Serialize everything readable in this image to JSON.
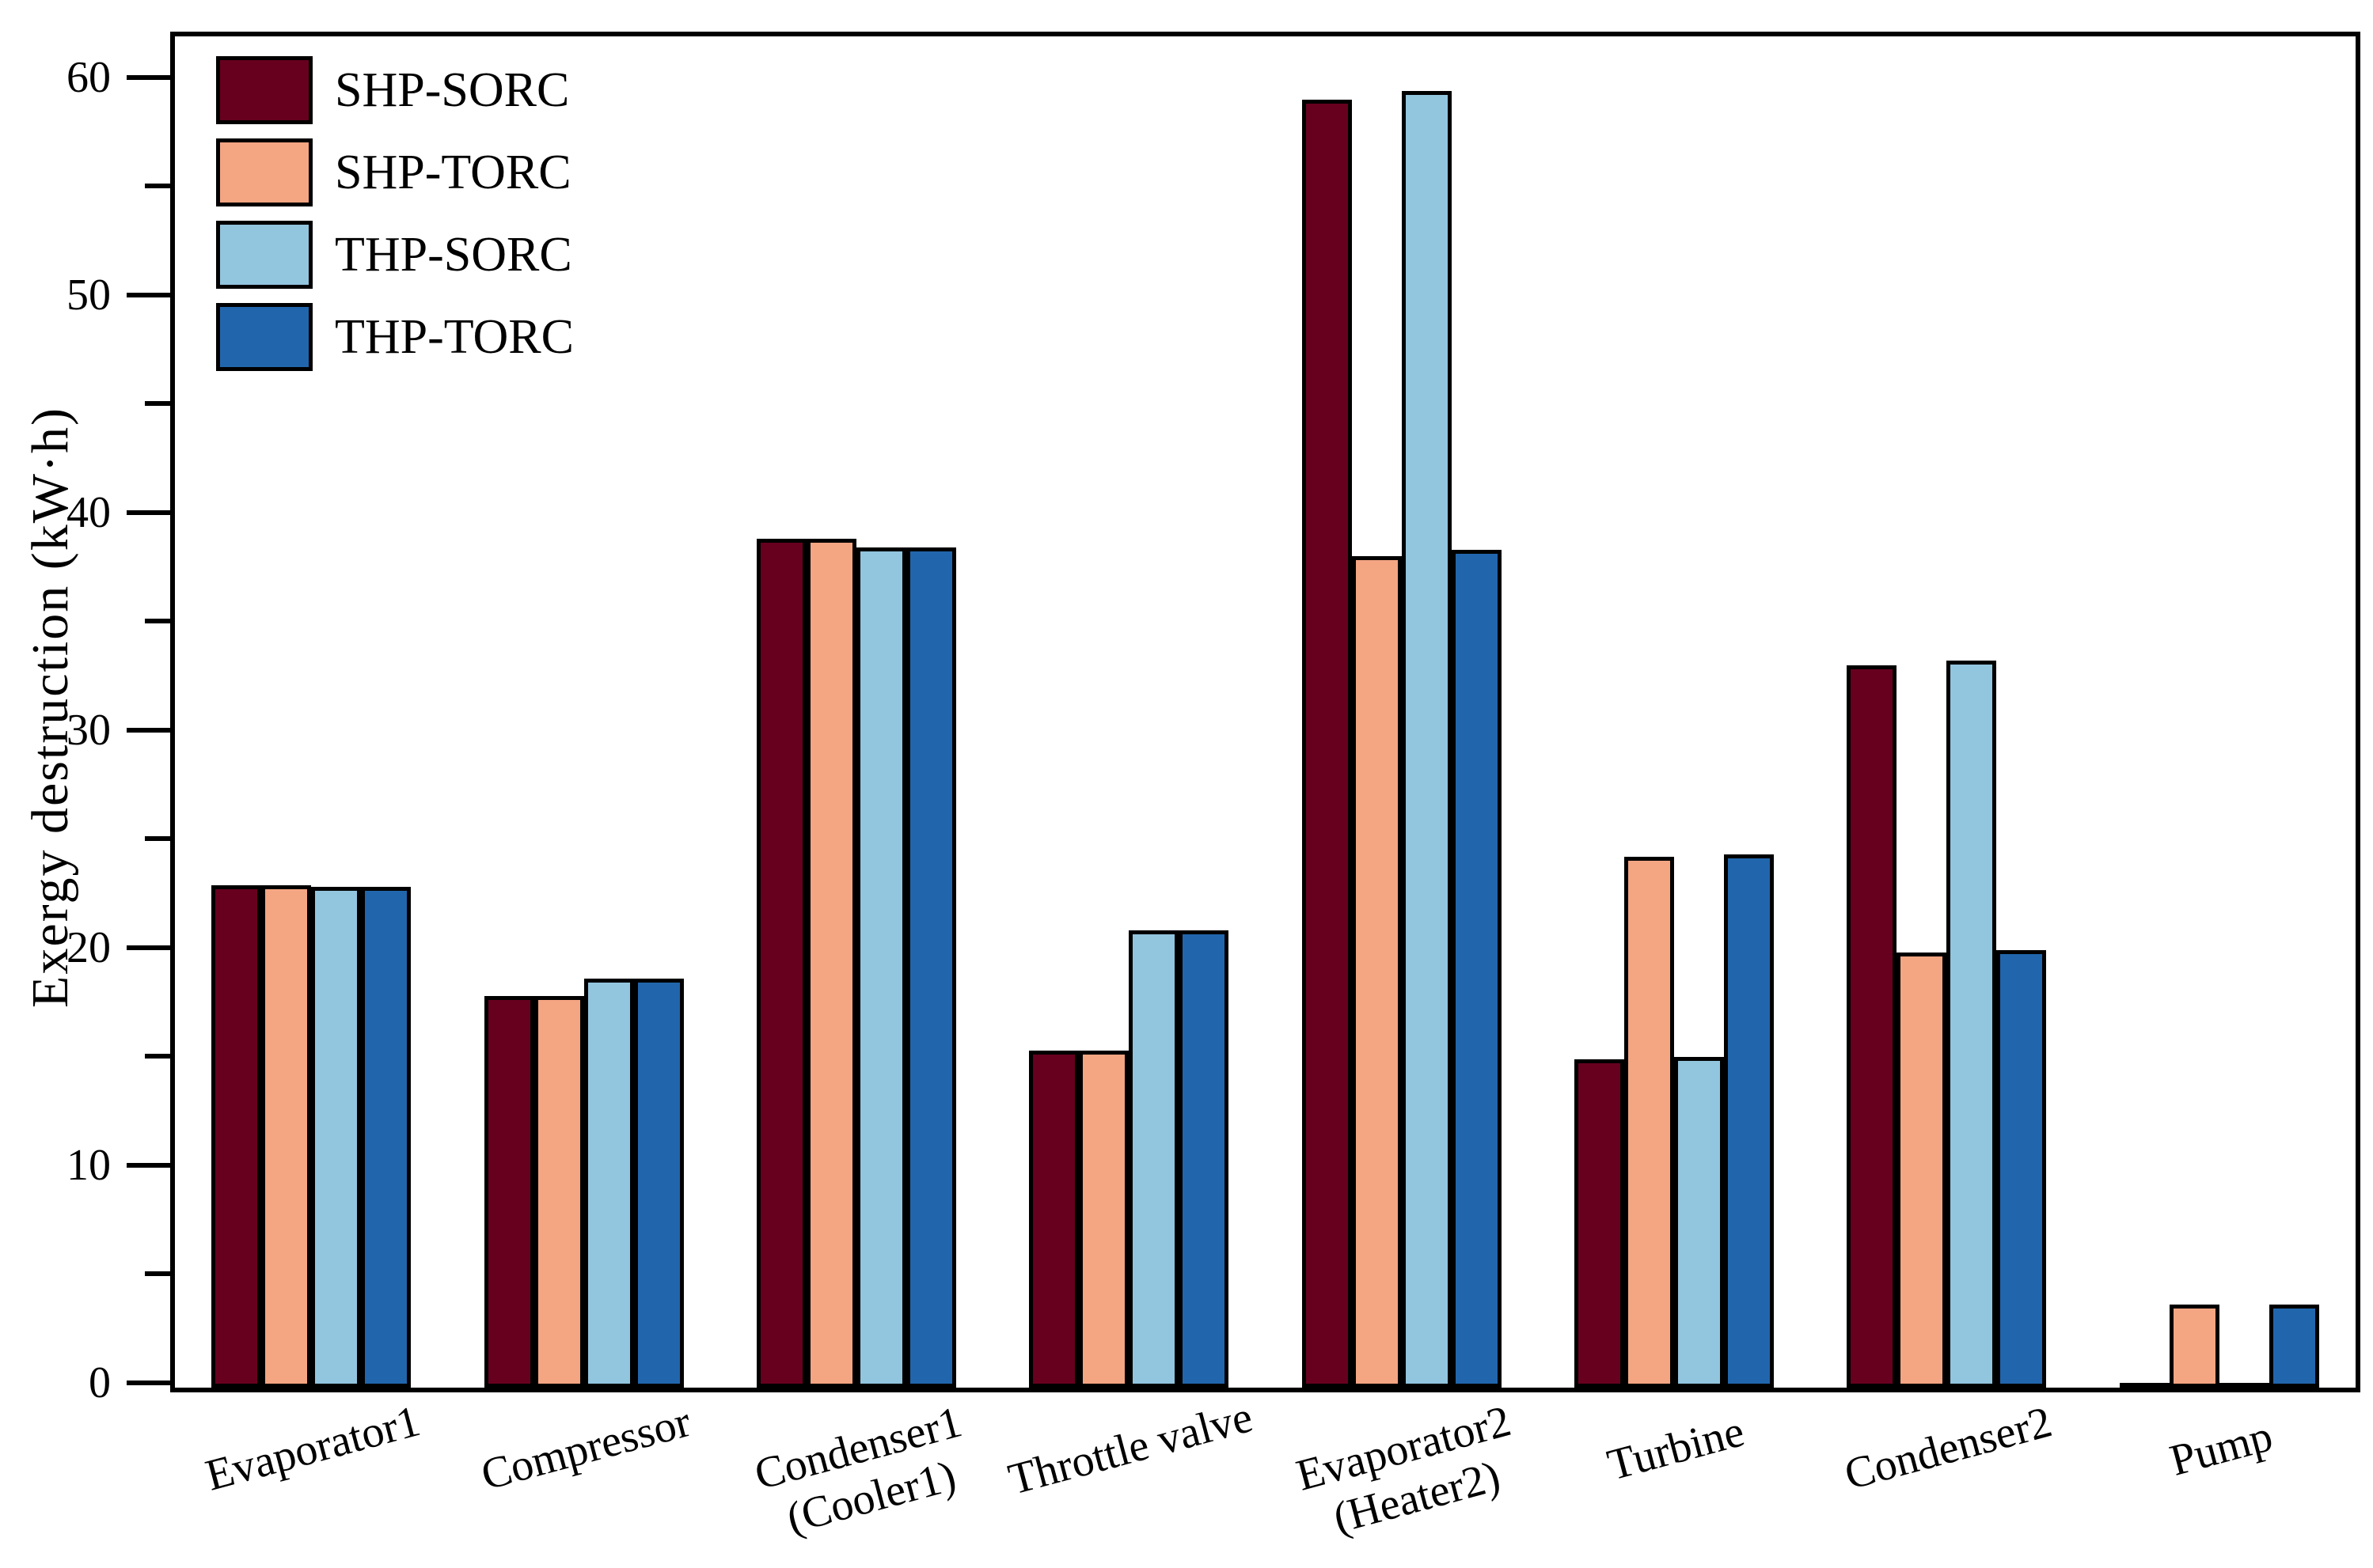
{
  "chart_data": {
    "type": "bar",
    "title": "",
    "xlabel": "",
    "ylabel": "Exergy destruction (kW·h)",
    "ylim": [
      0,
      62.1
    ],
    "yticks": [
      0,
      10,
      20,
      30,
      40,
      50,
      60
    ],
    "minor_tick_interval": 5,
    "grid": false,
    "legend_position": "upper-left",
    "frame": true,
    "axis_color": "#000000",
    "categories": [
      "Evaporator1",
      "Compressor",
      "Condenser1\n(Cooler1)",
      "Throttle valve",
      "Evaporator2\n(Heater2)",
      "Turbine",
      "Condenser2",
      "Pump"
    ],
    "series": [
      {
        "name": "SHP-SORC",
        "color": "#67001F",
        "values": [
          23.1,
          18.0,
          39.0,
          15.5,
          59.2,
          15.1,
          33.2,
          0.2
        ]
      },
      {
        "name": "SHP-TORC",
        "color": "#F4A582",
        "values": [
          23.1,
          18.0,
          39.0,
          15.5,
          38.2,
          24.4,
          20.0,
          3.8
        ]
      },
      {
        "name": "THP-SORC",
        "color": "#92C5DE",
        "values": [
          23.0,
          18.8,
          38.6,
          21.0,
          59.6,
          15.2,
          33.4,
          0.2
        ]
      },
      {
        "name": "THP-TORC",
        "color": "#2166AC",
        "values": [
          23.0,
          18.8,
          38.6,
          21.0,
          38.5,
          24.5,
          20.1,
          3.8
        ]
      }
    ]
  }
}
